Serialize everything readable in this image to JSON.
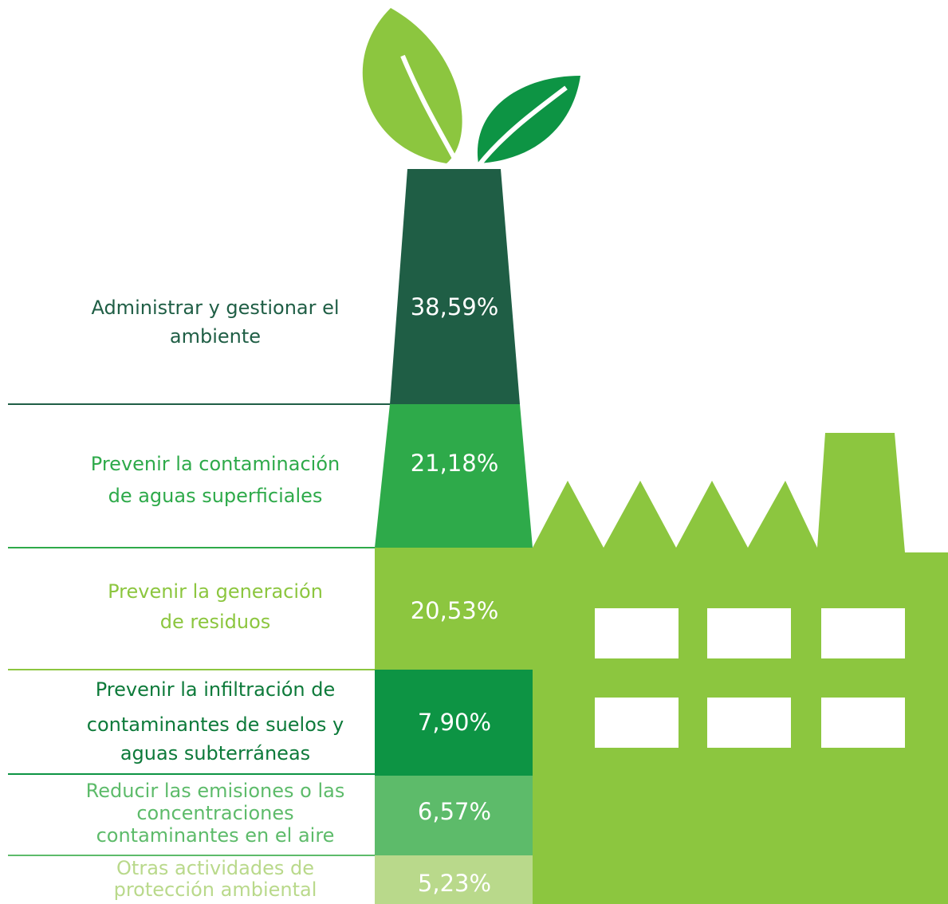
{
  "items": [
    {
      "label_lines": [
        "Administrar y gestionar el",
        "ambiente"
      ],
      "value": "38,59%"
    },
    {
      "label_lines": [
        "Prevenir la contaminación",
        "de aguas superficiales"
      ],
      "value": "21,18%"
    },
    {
      "label_lines": [
        "Prevenir la generación",
        "de residuos"
      ],
      "value": "20,53%"
    },
    {
      "label_lines": [
        "Prevenir la infiltración de",
        "contaminantes de suelos y",
        "aguas subterráneas"
      ],
      "value": "7,90%"
    },
    {
      "label_lines": [
        "Reducir las emisiones o las",
        "concentraciones",
        "contaminantes en el aire"
      ],
      "value": "6,57%"
    },
    {
      "label_lines": [
        "Otras actividades de",
        "protección ambiental"
      ],
      "value": "5,23%"
    }
  ]
}
